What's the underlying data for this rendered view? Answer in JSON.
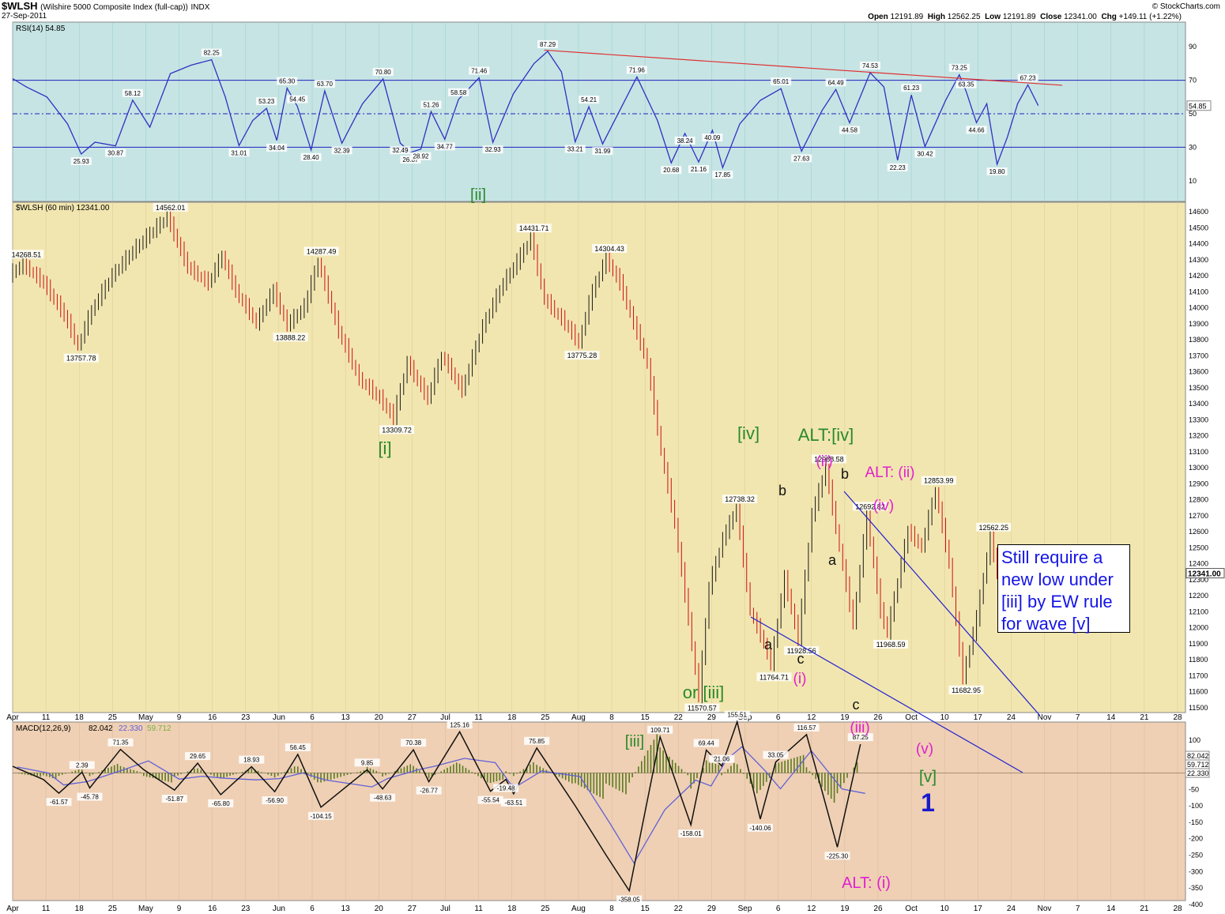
{
  "header": {
    "symbol": "$WLSH",
    "symbol_desc": "(Wilshire 5000 Composite Index (full-cap))",
    "exchange": "INDX",
    "date": "27-Sep-2011",
    "brand": "© StockCharts.com",
    "ohlc": {
      "open_label": "Open",
      "open": "12191.89",
      "high_label": "High",
      "high": "12562.25",
      "low_label": "Low",
      "low": "12191.89",
      "close_label": "Close",
      "close": "12341.00",
      "chg_label": "Chg",
      "chg": "+149.11 (+1.22%)"
    }
  },
  "note": "Still require a new low under [iii] by EW rule for wave [v]",
  "chart_data": [
    {
      "type": "line",
      "name": "RSI",
      "legend": "RSI(14) 54.85",
      "ylim": [
        0,
        100
      ],
      "yticks": [
        10,
        30,
        50,
        70,
        90
      ],
      "reference_lines": [
        30,
        50,
        70
      ],
      "last_value_label": "54.85",
      "colors": {
        "line": "#3030c0",
        "background": "#c6e4e4",
        "fill": "#5aa0a8",
        "trendline": "#e03030"
      },
      "points": [
        {
          "x": 0,
          "y": 71
        },
        {
          "x": 4,
          "y": 66
        },
        {
          "x": 10,
          "y": 60
        },
        {
          "x": 16,
          "y": 44
        },
        {
          "x": 20,
          "y": 25.93
        },
        {
          "x": 24,
          "y": 33
        },
        {
          "x": 30,
          "y": 30.87
        },
        {
          "x": 35,
          "y": 58.12
        },
        {
          "x": 40,
          "y": 42
        },
        {
          "x": 46,
          "y": 74
        },
        {
          "x": 52,
          "y": 79
        },
        {
          "x": 58,
          "y": 82.25
        },
        {
          "x": 62,
          "y": 60
        },
        {
          "x": 66,
          "y": 31.01
        },
        {
          "x": 70,
          "y": 46
        },
        {
          "x": 74,
          "y": 53.23
        },
        {
          "x": 77,
          "y": 34.04
        },
        {
          "x": 80,
          "y": 65.3
        },
        {
          "x": 83,
          "y": 54.45
        },
        {
          "x": 87,
          "y": 28.4
        },
        {
          "x": 91,
          "y": 63.7
        },
        {
          "x": 96,
          "y": 32.39
        },
        {
          "x": 102,
          "y": 56
        },
        {
          "x": 108,
          "y": 70.8
        },
        {
          "x": 113,
          "y": 32.49
        },
        {
          "x": 116,
          "y": 26.87
        },
        {
          "x": 119,
          "y": 28.92
        },
        {
          "x": 122,
          "y": 51.26
        },
        {
          "x": 126,
          "y": 34.77
        },
        {
          "x": 130,
          "y": 58.58
        },
        {
          "x": 136,
          "y": 71.46
        },
        {
          "x": 140,
          "y": 32.93
        },
        {
          "x": 146,
          "y": 62
        },
        {
          "x": 152,
          "y": 80
        },
        {
          "x": 156,
          "y": 87.29
        },
        {
          "x": 160,
          "y": 75
        },
        {
          "x": 164,
          "y": 33.21
        },
        {
          "x": 168,
          "y": 54.21
        },
        {
          "x": 172,
          "y": 31.99
        },
        {
          "x": 178,
          "y": 56
        },
        {
          "x": 182,
          "y": 71.96
        },
        {
          "x": 188,
          "y": 46
        },
        {
          "x": 192,
          "y": 20.68
        },
        {
          "x": 196,
          "y": 38.24
        },
        {
          "x": 200,
          "y": 21.16
        },
        {
          "x": 204,
          "y": 40.09
        },
        {
          "x": 207,
          "y": 17.85
        },
        {
          "x": 212,
          "y": 44
        },
        {
          "x": 218,
          "y": 58
        },
        {
          "x": 224,
          "y": 65.01
        },
        {
          "x": 230,
          "y": 27.63
        },
        {
          "x": 236,
          "y": 52
        },
        {
          "x": 240,
          "y": 64.49
        },
        {
          "x": 244,
          "y": 44.58
        },
        {
          "x": 250,
          "y": 74.53
        },
        {
          "x": 254,
          "y": 66
        },
        {
          "x": 258,
          "y": 22.23
        },
        {
          "x": 262,
          "y": 61.23
        },
        {
          "x": 266,
          "y": 30.42
        },
        {
          "x": 272,
          "y": 58
        },
        {
          "x": 276,
          "y": 73.25
        },
        {
          "x": 278,
          "y": 63.35
        },
        {
          "x": 281,
          "y": 44.66
        },
        {
          "x": 284,
          "y": 56
        },
        {
          "x": 287,
          "y": 19.8
        },
        {
          "x": 290,
          "y": 36
        },
        {
          "x": 293,
          "y": 56
        },
        {
          "x": 296,
          "y": 67.23
        },
        {
          "x": 299,
          "y": 54.85
        }
      ],
      "annotations": [
        "25.93",
        "30.87",
        "58.12",
        "82.25",
        "31.01",
        "53.23",
        "34.04",
        "65.30",
        "54.45",
        "28.40",
        "63.70",
        "32.39",
        "70.80",
        "32.49",
        "26.87",
        "28.92",
        "51.26",
        "34.77",
        "58.58",
        "71.46",
        "32.93",
        "87.29",
        "33.21",
        "54.21",
        "31.99",
        "71.96",
        "20.68",
        "38.24",
        "21.16",
        "40.09",
        "17.85",
        "65.01",
        "27.63",
        "64.49",
        "44.58",
        "74.53",
        "22.23",
        "61.23",
        "30.42",
        "73.25",
        "63.35",
        "44.66",
        "19.80",
        "67.23"
      ],
      "wave_labels": [
        {
          "text": "[ii]",
          "color": "#2a8a2a"
        }
      ]
    },
    {
      "type": "line",
      "name": "$WLSH",
      "legend": "$WLSH (60 min) 12341.00",
      "ylim": [
        11450,
        14650
      ],
      "yticks": [
        11500,
        11600,
        11700,
        11800,
        11900,
        12000,
        12100,
        12200,
        12300,
        12400,
        12500,
        12600,
        12700,
        12800,
        12900,
        13000,
        13100,
        13200,
        13300,
        13400,
        13500,
        13600,
        13700,
        13800,
        13900,
        14000,
        14100,
        14200,
        14300,
        14400,
        14500,
        14600
      ],
      "last_value_label": "12341.00",
      "x_axis_labels": [
        "Apr",
        "11",
        "18",
        "25",
        "May",
        "9",
        "16",
        "23",
        "Jun",
        "6",
        "13",
        "20",
        "27",
        "Jul",
        "11",
        "18",
        "25",
        "Aug",
        "8",
        "15",
        "22",
        "29",
        "Sep",
        "6",
        "12",
        "19",
        "26",
        "Oct",
        "10",
        "17",
        "24",
        "Nov",
        "7",
        "14",
        "21",
        "28"
      ],
      "colors": {
        "up": "#1a1a1a",
        "down": "#cc1010",
        "background": "#f2e6b0"
      },
      "pivots": [
        {
          "x": 0,
          "y": 14200
        },
        {
          "x": 4,
          "y": 14268.51
        },
        {
          "x": 10,
          "y": 14150
        },
        {
          "x": 16,
          "y": 13950
        },
        {
          "x": 20,
          "y": 13757.78
        },
        {
          "x": 24,
          "y": 13980
        },
        {
          "x": 30,
          "y": 14200
        },
        {
          "x": 36,
          "y": 14350
        },
        {
          "x": 42,
          "y": 14480
        },
        {
          "x": 46,
          "y": 14562.01
        },
        {
          "x": 52,
          "y": 14250
        },
        {
          "x": 58,
          "y": 14150
        },
        {
          "x": 62,
          "y": 14320
        },
        {
          "x": 66,
          "y": 14100
        },
        {
          "x": 72,
          "y": 13900
        },
        {
          "x": 77,
          "y": 14100
        },
        {
          "x": 81,
          "y": 13888.22
        },
        {
          "x": 86,
          "y": 14000
        },
        {
          "x": 90,
          "y": 14287.49
        },
        {
          "x": 96,
          "y": 13850
        },
        {
          "x": 102,
          "y": 13550
        },
        {
          "x": 108,
          "y": 13430
        },
        {
          "x": 112,
          "y": 13309.72
        },
        {
          "x": 116,
          "y": 13650
        },
        {
          "x": 122,
          "y": 13430
        },
        {
          "x": 126,
          "y": 13700
        },
        {
          "x": 132,
          "y": 13480
        },
        {
          "x": 138,
          "y": 13880
        },
        {
          "x": 144,
          "y": 14150
        },
        {
          "x": 148,
          "y": 14280
        },
        {
          "x": 152,
          "y": 14431.71
        },
        {
          "x": 156,
          "y": 14050
        },
        {
          "x": 162,
          "y": 13900
        },
        {
          "x": 166,
          "y": 13775.28
        },
        {
          "x": 170,
          "y": 14100
        },
        {
          "x": 174,
          "y": 14304.43
        },
        {
          "x": 178,
          "y": 14150
        },
        {
          "x": 182,
          "y": 13900
        },
        {
          "x": 186,
          "y": 13650
        },
        {
          "x": 190,
          "y": 13100
        },
        {
          "x": 194,
          "y": 12650
        },
        {
          "x": 198,
          "y": 12050
        },
        {
          "x": 201,
          "y": 11570.57
        },
        {
          "x": 204,
          "y": 12250
        },
        {
          "x": 208,
          "y": 12550
        },
        {
          "x": 212,
          "y": 12738.32
        },
        {
          "x": 216,
          "y": 12100
        },
        {
          "x": 220,
          "y": 11900
        },
        {
          "x": 222,
          "y": 11764.71
        },
        {
          "x": 226,
          "y": 12300
        },
        {
          "x": 230,
          "y": 11928.56
        },
        {
          "x": 234,
          "y": 12700
        },
        {
          "x": 238,
          "y": 12988.58
        },
        {
          "x": 242,
          "y": 12500
        },
        {
          "x": 246,
          "y": 12020
        },
        {
          "x": 250,
          "y": 12692.82
        },
        {
          "x": 254,
          "y": 12100
        },
        {
          "x": 256,
          "y": 11968.59
        },
        {
          "x": 262,
          "y": 12600
        },
        {
          "x": 266,
          "y": 12500
        },
        {
          "x": 270,
          "y": 12853.99
        },
        {
          "x": 274,
          "y": 12400
        },
        {
          "x": 278,
          "y": 11682.95
        },
        {
          "x": 282,
          "y": 12050
        },
        {
          "x": 286,
          "y": 12562.25
        },
        {
          "x": 288,
          "y": 12341.0
        }
      ],
      "annotations": [
        "14268.51",
        "13757.78",
        "14562.01",
        "13888.22",
        "14287.49",
        "13309.72",
        "14431.71",
        "13775.28",
        "14304.43",
        "11570.57",
        "12738.32",
        "11764.71",
        "11928.56",
        "12988.58",
        "12692.82",
        "11968.59",
        "12853.99",
        "11682.95",
        "12562.25"
      ],
      "wave_labels": [
        {
          "text": "[i]",
          "color": "#2a8a2a"
        },
        {
          "text": "[iv]",
          "color": "#2a8a2a"
        },
        {
          "text": "ALT:[iv]",
          "color": "#2a8a2a"
        },
        {
          "text": "or [iii]",
          "color": "#2a8a2a"
        },
        {
          "text": "(ii)",
          "color": "#e020d0"
        },
        {
          "text": "ALT: (ii)",
          "color": "#e020d0"
        },
        {
          "text": "(iv)",
          "color": "#e020d0"
        },
        {
          "text": "(i)",
          "color": "#e020d0"
        },
        {
          "text": "a",
          "color": "#111111"
        },
        {
          "text": "b",
          "color": "#111111"
        },
        {
          "text": "c",
          "color": "#111111"
        },
        {
          "text": "a",
          "color": "#111111"
        },
        {
          "text": "b",
          "color": "#111111"
        },
        {
          "text": "c",
          "color": "#111111"
        }
      ],
      "trendline_color": "#2020d0"
    },
    {
      "type": "line",
      "name": "MACD",
      "legend": {
        "title": "MACD(12,26,9)",
        "macd": "82.042",
        "signal": "22.330",
        "hist": "59.712"
      },
      "ylim": [
        -400,
        150
      ],
      "yticks": [
        -400,
        -350,
        -300,
        -250,
        -200,
        -150,
        -100,
        -50,
        0,
        50,
        100
      ],
      "last_value_labels": [
        "82.042",
        "59.712",
        "22.330"
      ],
      "x_axis_labels": [
        "Apr",
        "11",
        "18",
        "25",
        "May",
        "9",
        "16",
        "23",
        "Jun",
        "6",
        "13",
        "20",
        "27",
        "Jul",
        "11",
        "18",
        "25",
        "Aug",
        "8",
        "15",
        "22",
        "29",
        "Sep",
        "6",
        "12",
        "19",
        "26",
        "Oct",
        "10",
        "17",
        "24",
        "Nov",
        "7",
        "14",
        "21",
        "28"
      ],
      "colors": {
        "macd": "#111111",
        "signal": "#6060d8",
        "histogram": "#5a7a20",
        "background": "#efd0b4"
      },
      "points": [
        {
          "x": 0,
          "y": 20
        },
        {
          "x": 8,
          "y": -20
        },
        {
          "x": 12,
          "y": -61.57
        },
        {
          "x": 18,
          "y": 2.39
        },
        {
          "x": 20,
          "y": -45.78
        },
        {
          "x": 28,
          "y": 71.35
        },
        {
          "x": 34,
          "y": 10
        },
        {
          "x": 42,
          "y": -51.87
        },
        {
          "x": 48,
          "y": 29.65
        },
        {
          "x": 54,
          "y": -65.8
        },
        {
          "x": 62,
          "y": 18.93
        },
        {
          "x": 68,
          "y": -56.9
        },
        {
          "x": 74,
          "y": 56.45
        },
        {
          "x": 80,
          "y": -104.15
        },
        {
          "x": 92,
          "y": 9.85
        },
        {
          "x": 96,
          "y": -48.63
        },
        {
          "x": 104,
          "y": 70.38
        },
        {
          "x": 108,
          "y": -26.77
        },
        {
          "x": 116,
          "y": 125.16
        },
        {
          "x": 124,
          "y": -55.54
        },
        {
          "x": 128,
          "y": -19.48
        },
        {
          "x": 130,
          "y": -63.51
        },
        {
          "x": 136,
          "y": 75.85
        },
        {
          "x": 146,
          "y": -100
        },
        {
          "x": 154,
          "y": -250
        },
        {
          "x": 160,
          "y": -358.05
        },
        {
          "x": 168,
          "y": 109.71
        },
        {
          "x": 176,
          "y": -158.01
        },
        {
          "x": 180,
          "y": 69.44
        },
        {
          "x": 184,
          "y": 21.06
        },
        {
          "x": 188,
          "y": 155.51
        },
        {
          "x": 194,
          "y": -140.06
        },
        {
          "x": 198,
          "y": 33.05
        },
        {
          "x": 206,
          "y": 116.57
        },
        {
          "x": 214,
          "y": -225.3
        },
        {
          "x": 220,
          "y": 87.25
        }
      ],
      "annotations": [
        "-61.57",
        "2.39",
        "-45.78",
        "71.35",
        "-51.87",
        "29.65",
        "-65.80",
        "18.93",
        "-56.90",
        "56.45",
        "-104.15",
        "9.85",
        "-48.63",
        "70.38",
        "-26.77",
        "125.16",
        "-55.54",
        "-19.48",
        "-63.51",
        "75.85",
        "-358.05",
        "109.71",
        "-158.01",
        "69.44",
        "21.06",
        "155.51",
        "-140.06",
        "33.05",
        "116.57",
        "-225.30",
        "87.25"
      ],
      "wave_labels": [
        {
          "text": "[iii]",
          "color": "#2a8a2a"
        },
        {
          "text": "(iii)",
          "color": "#e020d0"
        },
        {
          "text": "(v)",
          "color": "#e020d0"
        },
        {
          "text": "[v]",
          "color": "#2a8a2a"
        },
        {
          "text": "1",
          "color": "#1a1acc"
        },
        {
          "text": "ALT: (i)",
          "color": "#e020d0"
        }
      ]
    }
  ]
}
